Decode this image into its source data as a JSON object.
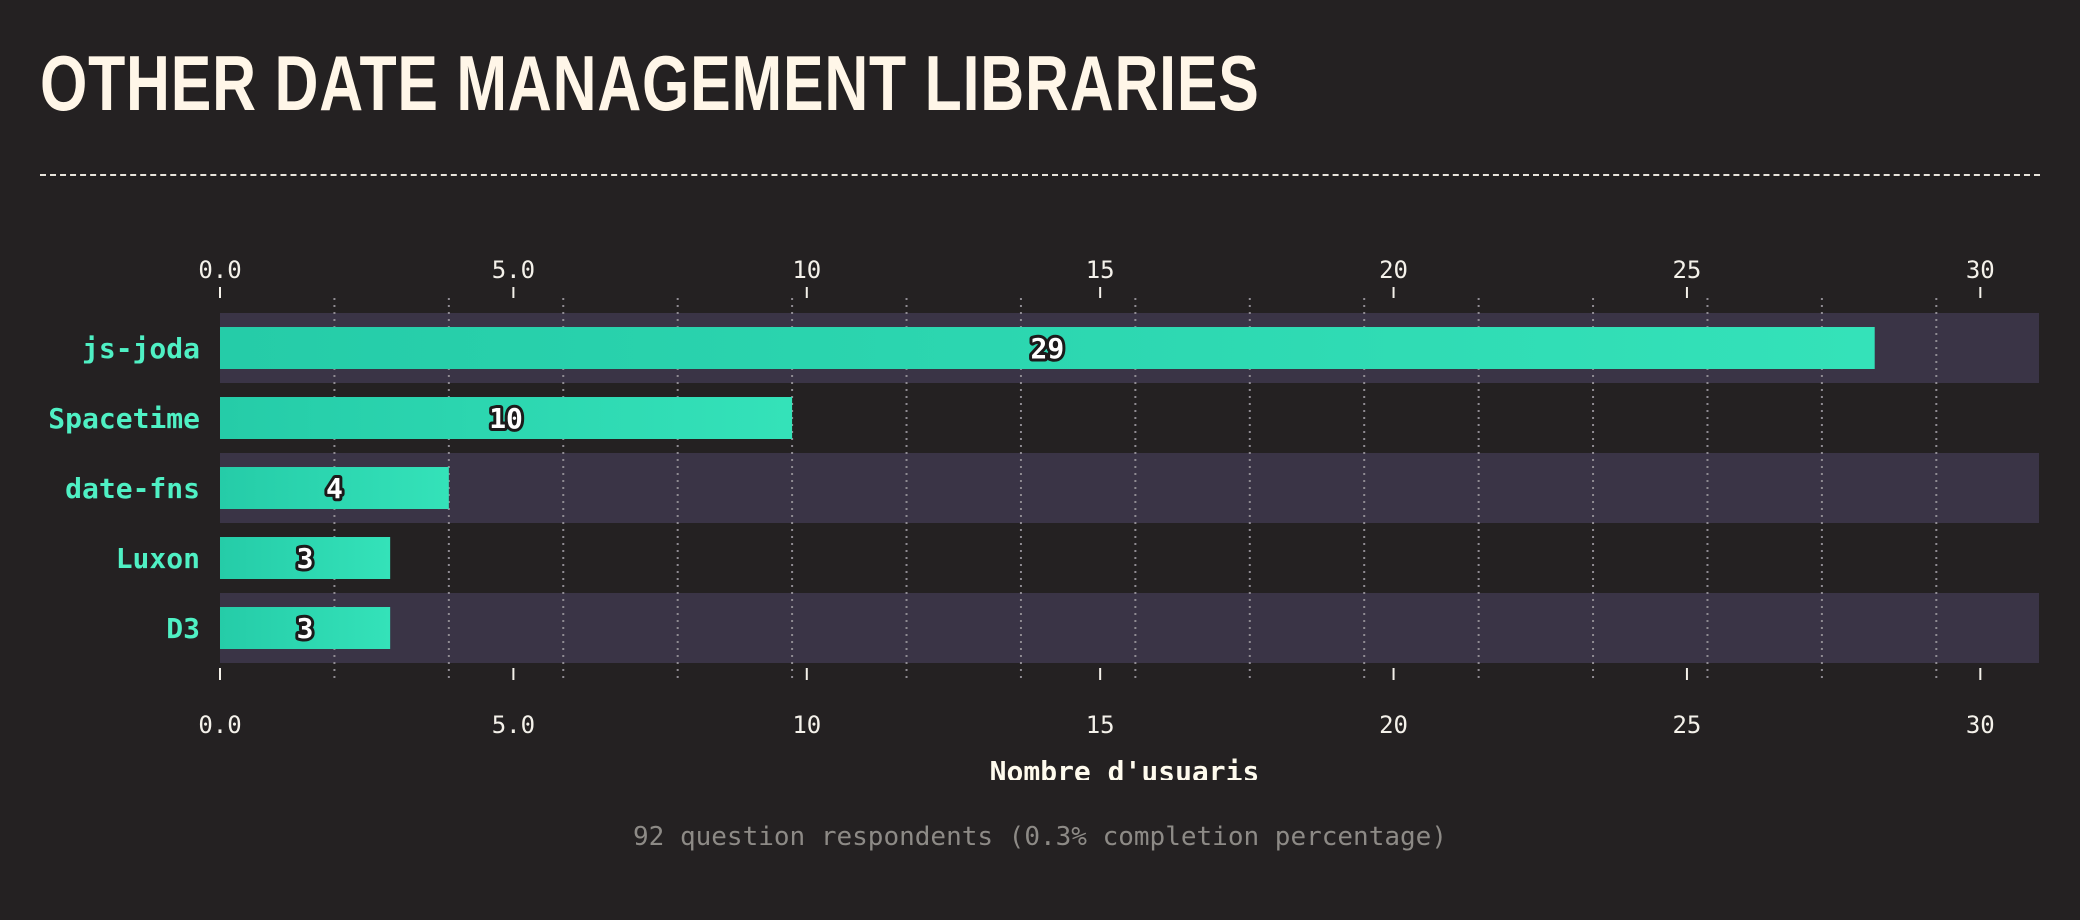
{
  "page": {
    "title": "OTHER DATE MANAGEMENT LIBRARIES",
    "footer": "92 question respondents (0.3% completion percentage)"
  },
  "chart_data": {
    "type": "bar",
    "orientation": "horizontal",
    "title": "OTHER DATE MANAGEMENT LIBRARIES",
    "xlabel": "Nombre d'usuaris",
    "ylabel": "",
    "categories": [
      "js-joda",
      "Spacetime",
      "date-fns",
      "Luxon",
      "D3"
    ],
    "values": [
      29,
      10,
      4,
      3,
      3
    ],
    "bar_values": [
      28.2,
      9.75,
      3.9,
      2.9,
      2.9
    ],
    "xlim": [
      0,
      31
    ],
    "x_ticks": [
      "0.0",
      "5.0",
      "10",
      "15",
      "20",
      "25",
      "30"
    ],
    "x_tick_values": [
      0,
      5,
      10,
      15,
      20,
      25,
      30
    ],
    "grid": "vertical dotted",
    "colors": {
      "bar_start": "#25cca8",
      "bar_end": "#34e2b9",
      "category_label": "#4ff0c4",
      "band": "#3a3446",
      "axis_text": "#f4f1ea",
      "grid": "#8f8b92",
      "value_text": "#ffffff",
      "value_outline": "#1c1a1b"
    }
  }
}
